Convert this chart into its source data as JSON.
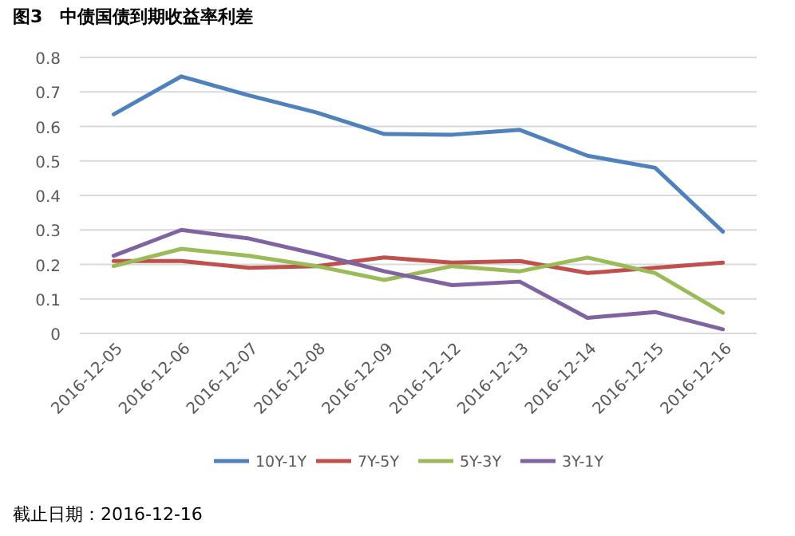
{
  "chart_data": {
    "type": "line",
    "title": "图3　中债国债到期收益率利差",
    "categories": [
      "2016-12-05",
      "2016-12-06",
      "2016-12-07",
      "2016-12-08",
      "2016-12-09",
      "2016-12-12",
      "2016-12-13",
      "2016-12-14",
      "2016-12-15",
      "2016-12-16"
    ],
    "series": [
      {
        "name": "10Y-1Y",
        "color": "#4f81bd",
        "values": [
          0.635,
          0.745,
          0.69,
          0.64,
          0.578,
          0.576,
          0.59,
          0.515,
          0.48,
          0.295
        ]
      },
      {
        "name": "7Y-5Y",
        "color": "#c0504d",
        "values": [
          0.21,
          0.21,
          0.19,
          0.195,
          0.22,
          0.205,
          0.21,
          0.175,
          0.19,
          0.205
        ]
      },
      {
        "name": "5Y-3Y",
        "color": "#9bbb59",
        "values": [
          0.195,
          0.245,
          0.225,
          0.195,
          0.155,
          0.195,
          0.18,
          0.22,
          0.175,
          0.06
        ]
      },
      {
        "name": "3Y-1Y",
        "color": "#8064a2",
        "values": [
          0.225,
          0.3,
          0.275,
          0.23,
          0.18,
          0.14,
          0.15,
          0.045,
          0.062,
          0.012
        ]
      }
    ],
    "ylim": [
      0,
      0.8
    ],
    "yticks": [
      0,
      0.1,
      0.2,
      0.3,
      0.4,
      0.5,
      0.6,
      0.7,
      0.8
    ],
    "grid": "y",
    "legend": "bottom",
    "marker": "none",
    "line_style": "solid",
    "annotations": [
      "截止日期：2016-12-16"
    ]
  }
}
